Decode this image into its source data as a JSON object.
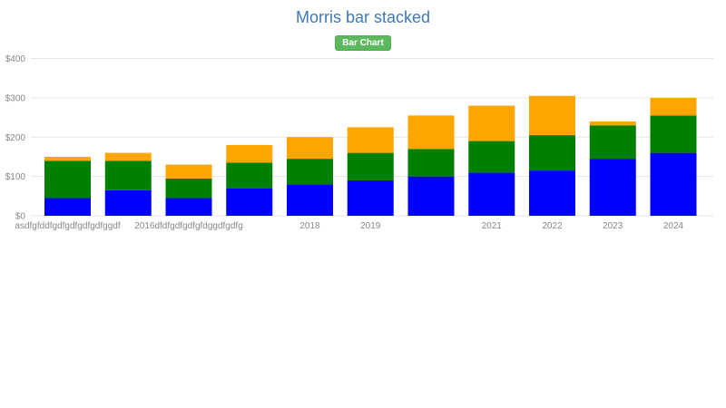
{
  "page": {
    "title": "Morris bar stacked",
    "badge_label": "Bar Chart"
  },
  "chart_data": {
    "type": "bar",
    "stacked": true,
    "title": "Morris bar stacked",
    "categories": [
      "asdfgfddfgdfgdfgdfgdfggdf",
      "",
      "2016dfdfgdfgdfgfdggdfgdfg",
      "",
      "2018",
      "2019",
      "",
      "2021",
      "2022",
      "2023",
      "2024"
    ],
    "series": [
      {
        "name": "blue",
        "color": "#0000ff",
        "values": [
          45,
          65,
          45,
          70,
          80,
          90,
          100,
          110,
          115,
          145,
          160
        ]
      },
      {
        "name": "green",
        "color": "#008000",
        "values": [
          95,
          75,
          50,
          65,
          65,
          70,
          70,
          80,
          90,
          85,
          95
        ]
      },
      {
        "name": "orange",
        "color": "#ffa500",
        "values": [
          10,
          20,
          35,
          45,
          55,
          65,
          85,
          90,
          100,
          10,
          45
        ]
      }
    ],
    "totals": [
      150,
      160,
      130,
      180,
      200,
      225,
      255,
      280,
      305,
      240,
      300
    ],
    "y_ticks": [
      "$0",
      "$100",
      "$200",
      "$300",
      "$400"
    ],
    "y_tick_values": [
      0,
      100,
      200,
      300,
      400
    ],
    "ylim": [
      0,
      400
    ],
    "grid": true,
    "legend": "none",
    "tick_color": "#888888",
    "grid_color": "#e5e5e5"
  }
}
